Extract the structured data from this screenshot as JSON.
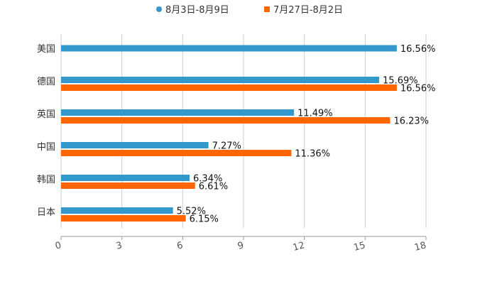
{
  "chart_data": {
    "type": "bar",
    "orientation": "horizontal",
    "title": "",
    "xlabel": "",
    "ylabel": "",
    "xlim": [
      0,
      18
    ],
    "xticks": [
      "0",
      "3",
      "6",
      "9",
      "12",
      "15",
      "18"
    ],
    "grid": true,
    "legend_position": "top-center",
    "categories": [
      "美国",
      "德国",
      "英国",
      "中国",
      "韩国",
      "日本"
    ],
    "series": [
      {
        "name": "8月3日-8月9日",
        "color": "#3399cc",
        "marker": "circle",
        "values": [
          16.56,
          15.69,
          11.49,
          7.27,
          6.34,
          5.52
        ],
        "labels": [
          "16.56%",
          "15.69%",
          "11.49%",
          "7.27%",
          "6.34%",
          "5.52%"
        ]
      },
      {
        "name": "7月27日-8月2日",
        "color": "#ff6600",
        "marker": "square",
        "values": [
          null,
          16.56,
          16.23,
          11.36,
          6.61,
          6.15
        ],
        "labels": [
          null,
          "16.56%",
          "16.23%",
          "11.36%",
          "6.61%",
          "6.15%"
        ]
      }
    ]
  }
}
